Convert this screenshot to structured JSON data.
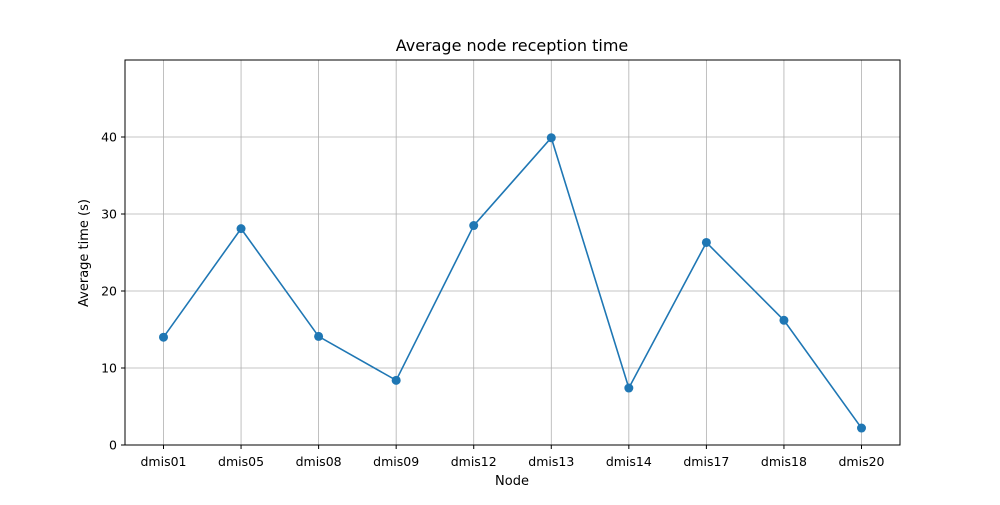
{
  "chart_data": {
    "type": "line",
    "title": "Average node reception time",
    "xlabel": "Node",
    "ylabel": "Average time (s)",
    "categories": [
      "dmis01",
      "dmis05",
      "dmis08",
      "dmis09",
      "dmis12",
      "dmis13",
      "dmis14",
      "dmis17",
      "dmis18",
      "dmis20"
    ],
    "series": [
      {
        "values": [
          14.0,
          28.1,
          14.1,
          8.4,
          28.5,
          39.9,
          7.4,
          26.3,
          16.2,
          2.2
        ],
        "color": "#1f77b4"
      }
    ],
    "ylim": [
      0,
      50
    ],
    "yticks": [
      0,
      10,
      20,
      30,
      40
    ],
    "grid": true,
    "legend": "none",
    "colors": {
      "line": "#1f77b4",
      "grid": "#b0b0b0",
      "axes": "#000000"
    }
  }
}
